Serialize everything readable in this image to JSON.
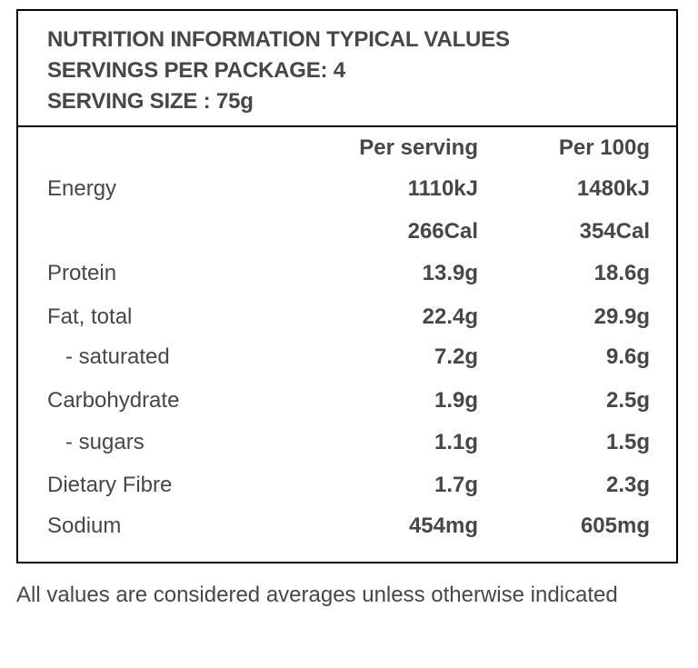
{
  "header": {
    "line1": "NUTRITION INFORMATION TYPICAL VALUES",
    "line2": "SERVINGS PER PACKAGE: 4",
    "line3": "SERVING SIZE : 75g"
  },
  "columns": {
    "per_serving": "Per serving",
    "per_100g": "Per 100g"
  },
  "rows": [
    {
      "label": "Energy",
      "per_serving": "1110kJ",
      "per_100g": "1480kJ"
    },
    {
      "label": "",
      "per_serving": "266Cal",
      "per_100g": "354Cal"
    },
    {
      "label": "Protein",
      "per_serving": "13.9g",
      "per_100g": "18.6g"
    },
    {
      "label": "Fat, total",
      "per_serving": "22.4g",
      "per_100g": "29.9g"
    },
    {
      "label": "- saturated",
      "per_serving": "7.2g",
      "per_100g": "9.6g"
    },
    {
      "label": "Carbohydrate",
      "per_serving": "1.9g",
      "per_100g": "2.5g"
    },
    {
      "label": "- sugars",
      "per_serving": "1.1g",
      "per_100g": "1.5g"
    },
    {
      "label": "Dietary Fibre",
      "per_serving": "1.7g",
      "per_100g": "2.3g"
    },
    {
      "label": "Sodium",
      "per_serving": "454mg",
      "per_100g": "605mg"
    }
  ],
  "footnote": "All values are considered averages unless otherwise indicated"
}
